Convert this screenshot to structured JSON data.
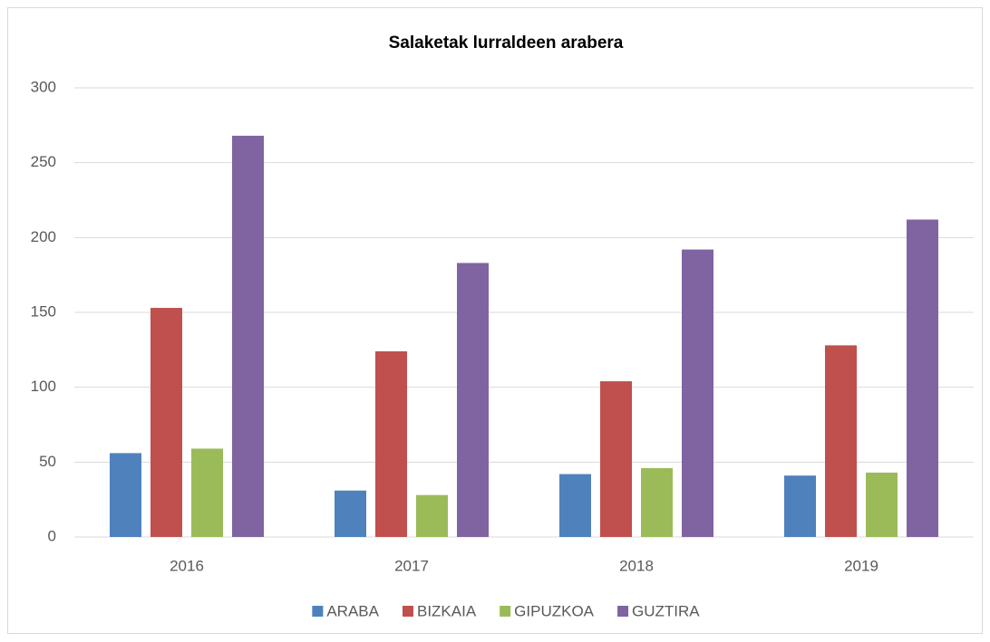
{
  "chart_data": {
    "type": "bar",
    "title": "Salaketak lurraldeen arabera",
    "categories": [
      "2016",
      "2017",
      "2018",
      "2019"
    ],
    "series": [
      {
        "name": "ARABA",
        "color": "#4f81bd",
        "values": [
          56,
          31,
          42,
          41
        ]
      },
      {
        "name": "BIZKAIA",
        "color": "#c0504d",
        "values": [
          153,
          124,
          104,
          128
        ]
      },
      {
        "name": "GIPUZKOA",
        "color": "#9bbb59",
        "values": [
          59,
          28,
          46,
          43
        ]
      },
      {
        "name": "GUZTIRA",
        "color": "#8064a2",
        "values": [
          268,
          183,
          192,
          212
        ]
      }
    ],
    "ylim": [
      0,
      300
    ],
    "yticks": [
      0,
      50,
      100,
      150,
      200,
      250,
      300
    ],
    "grid": true,
    "legend": "bottom"
  }
}
